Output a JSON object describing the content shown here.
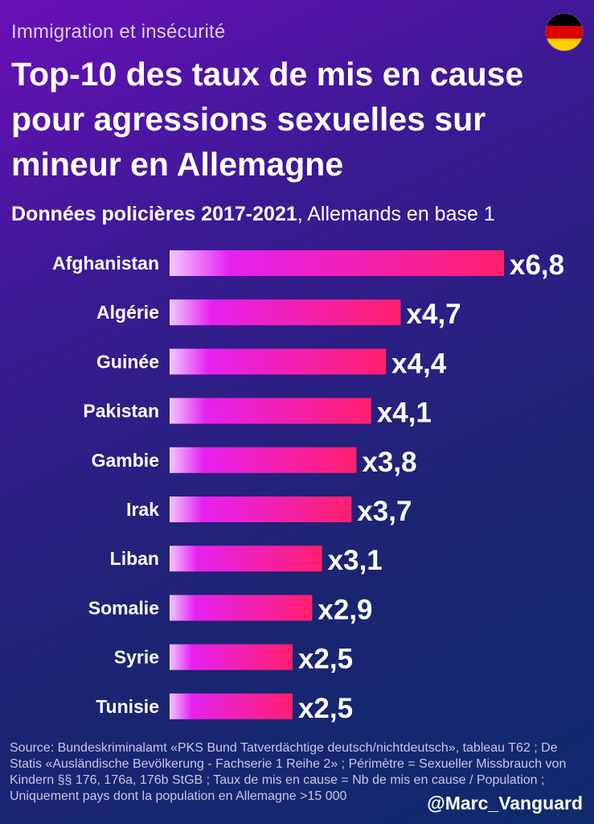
{
  "header": {
    "kicker": "Immigration et insécurité",
    "title": "Top-10 des taux de mis en cause pour agressions sexuelles sur mineur en Allemagne",
    "subheader_bold": "Données policières 2017-2021",
    "subheader_rest": ", Allemands en base 1"
  },
  "flag": {
    "colors": [
      "#000000",
      "#dd0000",
      "#ffce00"
    ]
  },
  "chart_data": {
    "type": "bar",
    "orientation": "horizontal",
    "categories": [
      "Afghanistan",
      "Algérie",
      "Guinée",
      "Pakistan",
      "Gambie",
      "Irak",
      "Liban",
      "Somalie",
      "Syrie",
      "Tunisie"
    ],
    "values": [
      6.8,
      4.7,
      4.4,
      4.1,
      3.8,
      3.7,
      3.1,
      2.9,
      2.5,
      2.5
    ],
    "value_labels": [
      "x6,8",
      "x4,7",
      "x4,4",
      "x4,1",
      "x3,8",
      "x3,7",
      "x3,1",
      "x2,9",
      "x2,5",
      "x2,5"
    ],
    "xlim": [
      0,
      6.8
    ],
    "title": "Top-10 des taux de mis en cause pour agressions sexuelles sur mineur en Allemagne",
    "xlabel": "",
    "ylabel": "",
    "bar_gradient": [
      "#f0c8ff",
      "#e621f0",
      "#ff1f6e"
    ]
  },
  "footer": {
    "source": "Source: Bundeskriminalamt «PKS Bund Tatverdächtige deutsch/nichtdeutsch», tableau T62 ; De Statis «Ausländische Bevölkerung - Fachserie 1 Reihe 2» ; Périmètre = Sexueller Missbrauch von Kindern §§ 176, 176a, 176b StGB ; Taux de mis en cause = Nb de mis en cause / Population ; Uniquement pays dont la population en Allemagne >15 000",
    "handle": "@Marc_Vanguard"
  }
}
